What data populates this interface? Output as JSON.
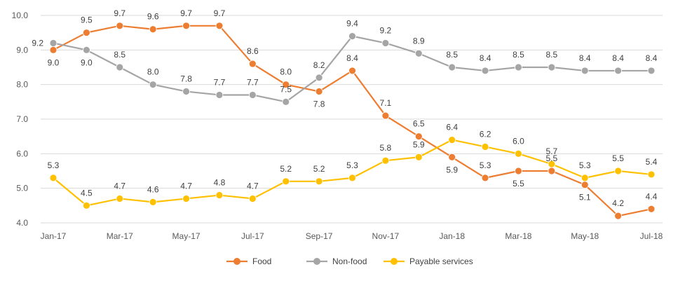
{
  "chart_data": {
    "type": "line",
    "x": [
      "Jan-17",
      "Feb-17",
      "Mar-17",
      "Apr-17",
      "May-17",
      "Jun-17",
      "Jul-17",
      "Aug-17",
      "Sep-17",
      "Oct-17",
      "Nov-17",
      "Dec-17",
      "Jan-18",
      "Feb-18",
      "Mar-18",
      "Apr-18",
      "May-18",
      "Jun-18",
      "Jul-18"
    ],
    "x_tick_labels": [
      "Jan-17",
      "",
      "Mar-17",
      "",
      "May-17",
      "",
      "Jul-17",
      "",
      "Sep-17",
      "",
      "Nov-17",
      "",
      "Jan-18",
      "",
      "Mar-18",
      "",
      "May-18",
      "",
      "Jul-18"
    ],
    "ylim": [
      4.0,
      10.0
    ],
    "y_ticks": [
      "4.0",
      "5.0",
      "6.0",
      "7.0",
      "8.0",
      "9.0",
      "10.0"
    ],
    "grid": "horizontal",
    "legend_position": "bottom",
    "series": [
      {
        "name": "Food",
        "color": "#ED7D31",
        "values": [
          9.0,
          9.5,
          9.7,
          9.6,
          9.7,
          9.7,
          8.6,
          8.0,
          7.8,
          8.4,
          7.1,
          6.5,
          5.9,
          5.3,
          5.5,
          5.5,
          5.1,
          4.2,
          4.4
        ],
        "labels": [
          "9.0",
          "9.5",
          "9.7",
          "9.6",
          "9.7",
          "9.7",
          "8.6",
          "8.0",
          "7.8",
          "8.4",
          "7.1",
          "6.5",
          "5.9",
          "5.3",
          "5.5",
          "5.5",
          "5.1",
          "4.2",
          "4.4"
        ]
      },
      {
        "name": "Non-food",
        "color": "#A5A5A5",
        "values": [
          9.2,
          9.0,
          8.5,
          8.0,
          7.8,
          7.7,
          7.7,
          7.5,
          8.2,
          9.4,
          9.2,
          8.9,
          8.5,
          8.4,
          8.5,
          8.5,
          8.4,
          8.4,
          8.4
        ],
        "labels": [
          "9.2",
          "9.0",
          "8.5",
          "8.0",
          "7.8",
          "7.7",
          "7.7",
          "7.5",
          "8.2",
          "9.4",
          "9.2",
          "8.9",
          "8.5",
          "8.4",
          "8.5",
          "8.5",
          "8.4",
          "8.4",
          "8.4"
        ]
      },
      {
        "name": "Payable services",
        "color": "#FFC000",
        "values": [
          5.3,
          4.5,
          4.7,
          4.6,
          4.7,
          4.8,
          4.7,
          5.2,
          5.2,
          5.3,
          5.8,
          5.9,
          6.4,
          6.2,
          6.0,
          5.7,
          5.3,
          5.5,
          5.4
        ],
        "labels": [
          "5.3",
          "4.5",
          "4.7",
          "4.6",
          "4.7",
          "4.8",
          "4.7",
          "5.2",
          "5.2",
          "5.3",
          "5.8",
          "5.9",
          "6.4",
          "6.2",
          "6.0",
          "5.7",
          "5.3",
          "5.5",
          "5.4"
        ]
      }
    ]
  }
}
